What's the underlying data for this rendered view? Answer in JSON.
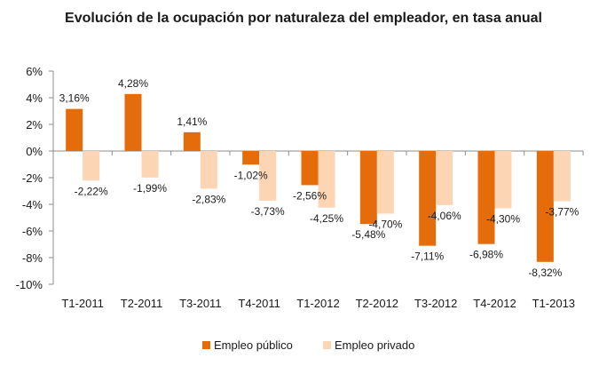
{
  "chart_data": {
    "type": "bar",
    "title": "Evolución de la ocupación por naturaleza del empleador, en tasa anual",
    "xlabel": "",
    "ylabel": "",
    "categories": [
      "T1-2011",
      "T2-2011",
      "T3-2011",
      "T4-2011",
      "T1-2012",
      "T2-2012",
      "T3-2012",
      "T4-2012",
      "T1-2013"
    ],
    "series": [
      {
        "name": "Empleo público",
        "color": "#E46C0A",
        "values": [
          3.16,
          4.28,
          1.41,
          -1.02,
          -2.56,
          -5.48,
          -7.11,
          -6.98,
          -8.32
        ],
        "labels": [
          "3,16%",
          "4,28%",
          "1,41%",
          "-1,02%",
          "-2,56%",
          "-5,48%",
          "-7,11%",
          "-6,98%",
          "-8,32%"
        ]
      },
      {
        "name": "Empleo privado",
        "color": "#FCD5B5",
        "values": [
          -2.22,
          -1.99,
          -2.83,
          -3.73,
          -4.25,
          -4.7,
          -4.06,
          -4.3,
          -3.77
        ],
        "labels": [
          "-2,22%",
          "-1,99%",
          "-2,83%",
          "-3,73%",
          "-4,25%",
          "-4,70%",
          "-4,06%",
          "-4,30%",
          "-3,77%"
        ]
      }
    ],
    "ylim": [
      -10,
      6
    ],
    "yticks": [
      6,
      4,
      2,
      0,
      -2,
      -4,
      -6,
      -8,
      -10
    ],
    "ytick_labels": [
      "6%",
      "4%",
      "2%",
      "0%",
      "-2%",
      "-4%",
      "-6%",
      "-8%",
      "-10%"
    ],
    "grid": false,
    "legend": "bottom-center"
  }
}
